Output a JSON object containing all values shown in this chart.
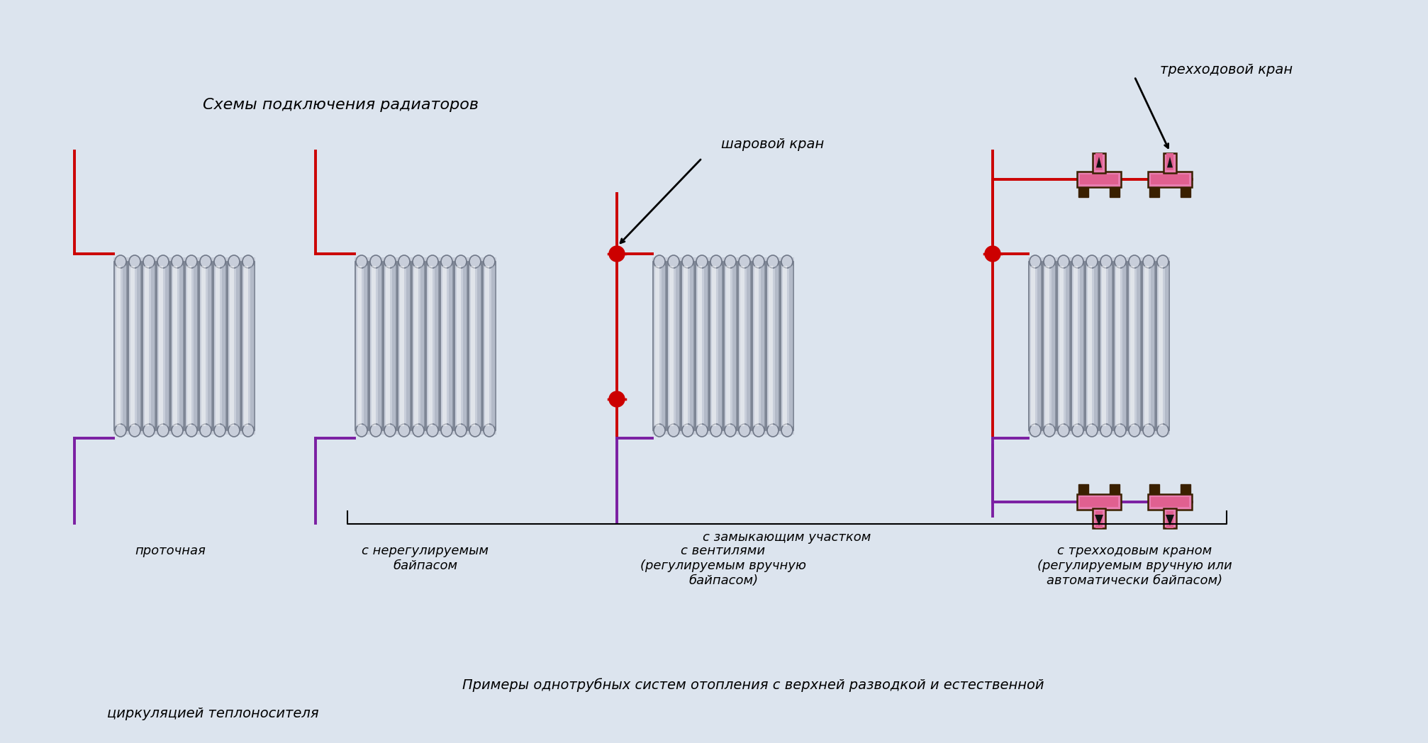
{
  "bg_color": "#dce4ee",
  "title_text": "Схемы подключения радиаторов",
  "sharovoy_text": "шаровой кран",
  "trekhod_text": "трехходовой кран",
  "footer_line1": "    Примеры однотрубных систем отопления с верхней разводкой и естественной",
  "footer_line2": "циркуляцией теплоносителя",
  "red_color": "#cc0000",
  "purple_color": "#7b1fa2",
  "pink_color": "#e87eb0",
  "dark_color": "#3a2000",
  "radiator_light": "#c8ceda",
  "radiator_mid": "#a0a8b8",
  "radiator_dark": "#707888",
  "zamyk_text": "с замыкающим участком",
  "label1": "проточная",
  "label2": "с нерегулируемым\nбайпасом",
  "label3": "с вентилями\n(регулируемым вручную\nбайпасом)",
  "label4": "с трехходовым краном\n(регулируемым вручную или\nавтоматически байпасом)"
}
